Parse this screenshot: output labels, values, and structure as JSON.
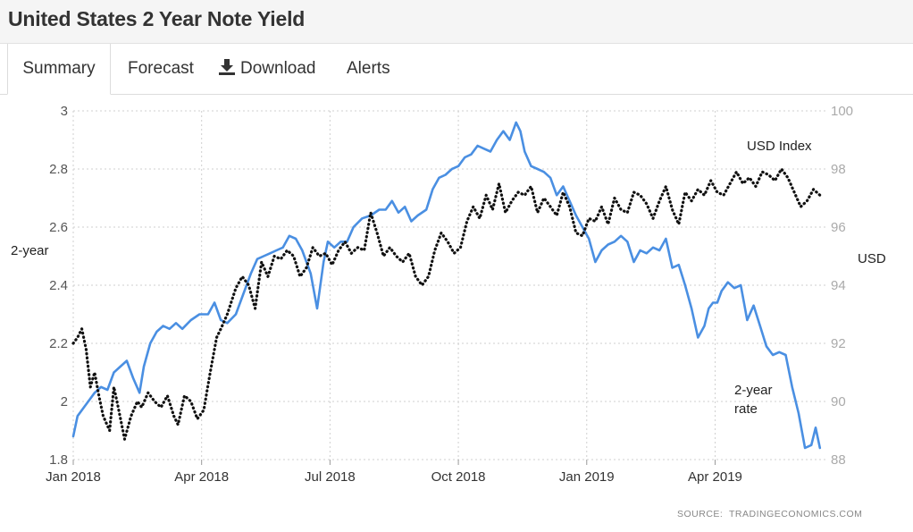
{
  "header": {
    "title": "United States 2 Year Note Yield"
  },
  "tabs": {
    "summary": "Summary",
    "forecast": "Forecast",
    "download": "Download",
    "alerts": "Alerts"
  },
  "chart_data": {
    "type": "line",
    "title": "",
    "x_ticks": [
      "Jan 2018",
      "Apr 2018",
      "Jul 2018",
      "Oct 2018",
      "Jan 2019",
      "Apr 2019"
    ],
    "left_axis": {
      "label": "2-year",
      "ticks": [
        "3",
        "2.8",
        "2.6",
        "2.4",
        "2.2",
        "2",
        "1.8"
      ],
      "ylim": [
        1.8,
        3.0
      ]
    },
    "right_axis": {
      "label": "USD",
      "ticks": [
        "100",
        "98",
        "96",
        "94",
        "92",
        "90",
        "88"
      ],
      "ylim": [
        88,
        100
      ]
    },
    "annotations": {
      "usd_index": "USD Index",
      "two_year_line1": "2-year",
      "two_year_line2": "rate"
    },
    "source": "SOURCE:  TRADINGECONOMICS.COM",
    "colors": {
      "yield": "#4a8fe2",
      "usd": "#111111",
      "grid": "#cfcfcf",
      "tick_text": "#555555",
      "right_tick_text": "#aaaaaa"
    },
    "x_range_months": [
      0,
      17.6
    ],
    "series": [
      {
        "name": "2-year rate",
        "axis": "left",
        "style": "solid",
        "x": [
          0,
          0.1,
          0.25,
          0.35,
          0.5,
          0.65,
          0.8,
          0.95,
          1.1,
          1.25,
          1.4,
          1.55,
          1.65,
          1.8,
          1.95,
          2.1,
          2.25,
          2.4,
          2.55,
          2.75,
          2.95,
          3.15,
          3.3,
          3.45,
          3.6,
          3.8,
          4.0,
          4.15,
          4.3,
          4.45,
          4.6,
          4.75,
          4.9,
          5.05,
          5.2,
          5.35,
          5.55,
          5.7,
          5.85,
          5.95,
          6.1,
          6.25,
          6.4,
          6.55,
          6.75,
          6.95,
          7.15,
          7.3,
          7.45,
          7.6,
          7.75,
          7.9,
          8.05,
          8.25,
          8.4,
          8.55,
          8.7,
          8.85,
          9.0,
          9.15,
          9.3,
          9.45,
          9.6,
          9.75,
          9.9,
          10.05,
          10.2,
          10.35,
          10.45,
          10.55,
          10.7,
          10.85,
          11.0,
          11.15,
          11.3,
          11.45,
          11.6,
          11.75,
          11.9,
          12.05,
          12.2,
          12.35,
          12.5,
          12.65,
          12.8,
          12.95,
          13.1,
          13.25,
          13.4,
          13.55,
          13.7,
          13.85,
          14.0,
          14.15,
          14.3,
          14.45,
          14.6,
          14.75,
          14.85,
          14.95,
          15.05,
          15.15,
          15.3,
          15.45,
          15.6,
          15.75,
          15.9,
          16.05,
          16.2,
          16.35,
          16.5,
          16.65,
          16.8,
          16.95,
          17.1,
          17.25,
          17.35,
          17.45
        ],
        "y": [
          1.88,
          1.95,
          1.98,
          2.0,
          2.03,
          2.05,
          2.04,
          2.1,
          2.12,
          2.14,
          2.08,
          2.03,
          2.12,
          2.2,
          2.24,
          2.26,
          2.25,
          2.27,
          2.25,
          2.28,
          2.3,
          2.3,
          2.34,
          2.28,
          2.27,
          2.3,
          2.38,
          2.44,
          2.49,
          2.5,
          2.51,
          2.52,
          2.53,
          2.57,
          2.56,
          2.52,
          2.44,
          2.32,
          2.48,
          2.55,
          2.53,
          2.55,
          2.55,
          2.6,
          2.63,
          2.64,
          2.66,
          2.66,
          2.69,
          2.65,
          2.67,
          2.62,
          2.64,
          2.66,
          2.73,
          2.77,
          2.78,
          2.8,
          2.81,
          2.84,
          2.85,
          2.88,
          2.87,
          2.86,
          2.9,
          2.93,
          2.9,
          2.96,
          2.93,
          2.86,
          2.81,
          2.8,
          2.79,
          2.77,
          2.71,
          2.74,
          2.69,
          2.64,
          2.6,
          2.56,
          2.48,
          2.52,
          2.54,
          2.55,
          2.57,
          2.55,
          2.48,
          2.52,
          2.51,
          2.53,
          2.52,
          2.56,
          2.46,
          2.47,
          2.4,
          2.32,
          2.22,
          2.26,
          2.32,
          2.34,
          2.34,
          2.38,
          2.41,
          2.39,
          2.4,
          2.28,
          2.33,
          2.26,
          2.19,
          2.16,
          2.17,
          2.16,
          2.05,
          1.96,
          1.84,
          1.85,
          1.91,
          1.84
        ]
      },
      {
        "name": "USD Index",
        "axis": "right",
        "style": "dotted",
        "x": [
          0,
          0.1,
          0.2,
          0.3,
          0.4,
          0.5,
          0.6,
          0.7,
          0.85,
          0.95,
          1.05,
          1.2,
          1.35,
          1.5,
          1.6,
          1.75,
          1.9,
          2.05,
          2.2,
          2.35,
          2.45,
          2.6,
          2.75,
          2.9,
          3.05,
          3.2,
          3.35,
          3.45,
          3.6,
          3.8,
          3.95,
          4.1,
          4.25,
          4.4,
          4.55,
          4.7,
          4.85,
          5.0,
          5.15,
          5.3,
          5.45,
          5.6,
          5.75,
          5.9,
          6.05,
          6.2,
          6.35,
          6.5,
          6.65,
          6.8,
          6.95,
          7.1,
          7.25,
          7.4,
          7.55,
          7.7,
          7.85,
          8.0,
          8.15,
          8.3,
          8.45,
          8.6,
          8.75,
          8.9,
          9.05,
          9.2,
          9.35,
          9.5,
          9.65,
          9.8,
          9.95,
          10.1,
          10.25,
          10.4,
          10.55,
          10.7,
          10.85,
          11.0,
          11.15,
          11.3,
          11.45,
          11.6,
          11.75,
          11.9,
          12.05,
          12.2,
          12.35,
          12.5,
          12.65,
          12.8,
          12.95,
          13.1,
          13.25,
          13.4,
          13.55,
          13.7,
          13.85,
          14.0,
          14.15,
          14.3,
          14.45,
          14.6,
          14.75,
          14.9,
          15.05,
          15.2,
          15.35,
          15.5,
          15.65,
          15.8,
          15.95,
          16.1,
          16.25,
          16.4,
          16.55,
          16.7,
          16.85,
          17.0,
          17.15,
          17.3,
          17.45
        ],
        "y": [
          92.0,
          92.2,
          92.5,
          91.8,
          90.5,
          91.0,
          90.2,
          89.5,
          89.0,
          90.5,
          89.8,
          88.7,
          89.5,
          90.0,
          89.8,
          90.3,
          90.0,
          89.8,
          90.2,
          89.5,
          89.2,
          90.2,
          90.0,
          89.4,
          89.7,
          91.0,
          92.2,
          92.5,
          93.0,
          93.9,
          94.3,
          94.0,
          93.2,
          94.8,
          94.3,
          95.0,
          94.9,
          95.2,
          95.0,
          94.3,
          94.6,
          95.3,
          95.0,
          95.1,
          94.7,
          95.2,
          95.5,
          95.1,
          95.3,
          95.2,
          96.5,
          95.8,
          95.0,
          95.3,
          95.0,
          94.8,
          95.1,
          94.3,
          94.0,
          94.3,
          95.2,
          95.8,
          95.5,
          95.1,
          95.3,
          96.2,
          96.7,
          96.3,
          97.1,
          96.6,
          97.5,
          96.5,
          96.9,
          97.2,
          97.1,
          97.4,
          96.5,
          97.0,
          96.7,
          96.4,
          97.2,
          96.7,
          95.8,
          95.7,
          96.3,
          96.2,
          96.7,
          96.1,
          97.0,
          96.6,
          96.5,
          97.2,
          97.1,
          96.8,
          96.3,
          96.9,
          97.4,
          96.6,
          96.1,
          97.2,
          96.9,
          97.3,
          97.1,
          97.6,
          97.2,
          97.1,
          97.5,
          97.9,
          97.5,
          97.7,
          97.4,
          97.9,
          97.8,
          97.6,
          98.0,
          97.7,
          97.2,
          96.7,
          96.9,
          97.3,
          97.1
        ]
      }
    ]
  }
}
